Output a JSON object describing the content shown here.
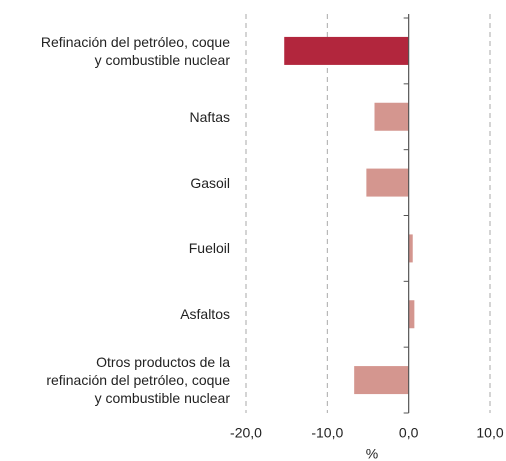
{
  "chart_data": {
    "type": "barh",
    "categories": [
      "Refinación del petróleo, coque\ny combustible nuclear",
      "Naftas",
      "Gasoil",
      "Fueloil",
      "Asfaltos",
      "Otros productos de la\nrefinación del petróleo, coque\ny combustible nuclear"
    ],
    "values": [
      -15.3,
      -4.2,
      -5.2,
      0.5,
      0.7,
      -6.7
    ],
    "colors": [
      "#b2263d",
      "#d4968f",
      "#d4968f",
      "#d4968f",
      "#d4968f",
      "#d4968f"
    ],
    "xlim": [
      -20,
      10
    ],
    "xticks": [
      {
        "value": -20,
        "label": "-20,0"
      },
      {
        "value": -10,
        "label": "-10,0"
      },
      {
        "value": 0,
        "label": "0,0"
      },
      {
        "value": 10,
        "label": "10,0"
      }
    ],
    "xlabel": "%",
    "grid": true
  }
}
